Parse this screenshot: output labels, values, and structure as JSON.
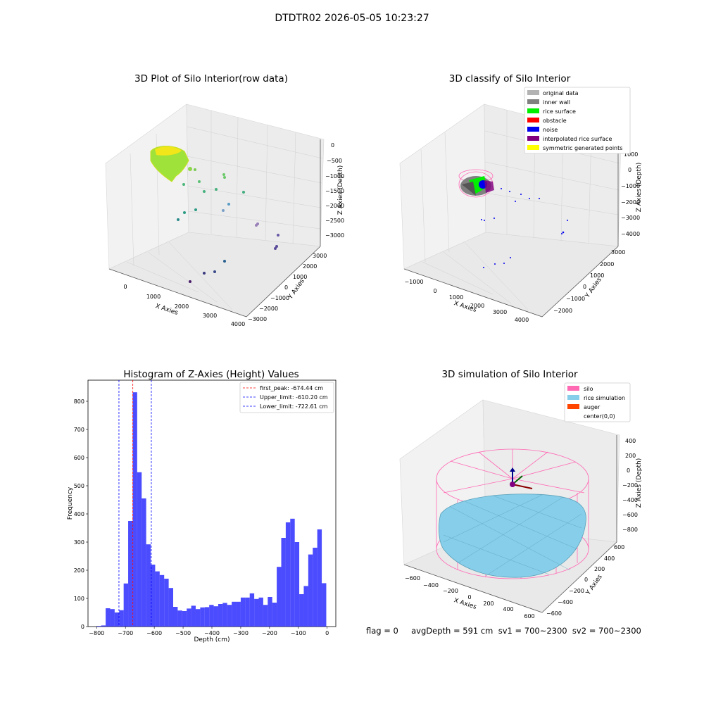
{
  "suptitle": "DTDTR02 2026-05-05 10:23:27",
  "panels": {
    "raw": {
      "title": "3D Plot of Silo Interior(row data)",
      "xlabel": "X Axies",
      "ylabel": "Y Axies",
      "zlabel": "Z Axies (Depth)",
      "xticks": [
        "0",
        "1000",
        "2000",
        "3000",
        "4000"
      ],
      "yticks": [
        "3000",
        "2000",
        "1000",
        "0",
        "−1000",
        "−2000",
        "−3000"
      ],
      "zticks": [
        "0",
        "−500",
        "−1000",
        "−1500",
        "−2000",
        "−2500",
        "−3000"
      ]
    },
    "classify": {
      "title": "3D classify of Silo Interior",
      "xlabel": "X Axies",
      "ylabel": "Y Axies",
      "zlabel": "Z Axies (Depth)",
      "xticks": [
        "−1000",
        "0",
        "1000",
        "2000",
        "3000",
        "4000"
      ],
      "yticks": [
        "3000",
        "2000",
        "1000",
        "0",
        "−1000",
        "−2000"
      ],
      "zticks": [
        "1000",
        "0",
        "−1000",
        "−2000",
        "−3000",
        "−4000"
      ],
      "legend": [
        {
          "label": "original data",
          "color": "#b3b3b3"
        },
        {
          "label": "inner wall",
          "color": "#808080"
        },
        {
          "label": "rice surface",
          "color": "#00ee00"
        },
        {
          "label": "obstacle",
          "color": "#ff0000"
        },
        {
          "label": "noise",
          "color": "#0000ee"
        },
        {
          "label": "interpolated rice surface",
          "color": "#800080"
        },
        {
          "label": "symmetric generated points",
          "color": "#ffff00"
        }
      ]
    },
    "simulation": {
      "title": "3D simulation of Silo Interior",
      "xlabel": "X Axies",
      "ylabel": "Y Axies",
      "zlabel": "Z Axies (Depth)",
      "xticks": [
        "−600",
        "−400",
        "−200",
        "0",
        "200",
        "400",
        "600"
      ],
      "yticks": [
        "600",
        "400",
        "200",
        "0",
        "−200",
        "−400",
        "−600"
      ],
      "zticks": [
        "400",
        "200",
        "0",
        "−200",
        "−400",
        "−600",
        "−800"
      ],
      "legend": [
        {
          "label": "silo",
          "color": "#ff69b4"
        },
        {
          "label": "rice simulation",
          "color": "#87ceeb"
        },
        {
          "label": "auger",
          "color": "#ff4500"
        },
        {
          "label": "center(0,0)",
          "color": ""
        }
      ]
    }
  },
  "chart_data": {
    "type": "bar",
    "title": "Histogram of Z-Axies (Height) Values",
    "xlabel": "Depth (cm)",
    "ylabel": "Frequency",
    "xlim": [
      -830,
      30
    ],
    "ylim": [
      0,
      875
    ],
    "xticks": [
      -800,
      -700,
      -600,
      -500,
      -400,
      -300,
      -200,
      -100,
      0
    ],
    "yticks": [
      0,
      100,
      200,
      300,
      400,
      500,
      600,
      700,
      800
    ],
    "bin_start": -800,
    "bin_width": 15.625,
    "values": [
      2,
      4,
      65,
      62,
      50,
      58,
      153,
      375,
      832,
      548,
      455,
      292,
      220,
      196,
      183,
      170,
      137,
      70,
      57,
      55,
      64,
      74,
      62,
      68,
      69,
      77,
      72,
      80,
      84,
      77,
      88,
      88,
      103,
      103,
      118,
      98,
      103,
      77,
      105,
      85,
      212,
      315,
      370,
      383,
      300,
      115,
      144,
      256,
      280,
      345,
      154
    ],
    "bar_color": "#0000ff",
    "vlines": [
      {
        "label": "first_peak: -674.44 cm",
        "value": -674.44,
        "color": "#ff0000"
      },
      {
        "label": "Upper_limit: -610.20 cm",
        "value": -610.2,
        "color": "#0000ff"
      },
      {
        "label": "Lower_limit: -722.61 cm",
        "value": -722.61,
        "color": "#0000ff"
      }
    ],
    "legend_position": "top-right"
  },
  "footer": "flag = 0     avgDepth = 591 cm  sv1 = 700~2300  sv2 = 700~2300"
}
